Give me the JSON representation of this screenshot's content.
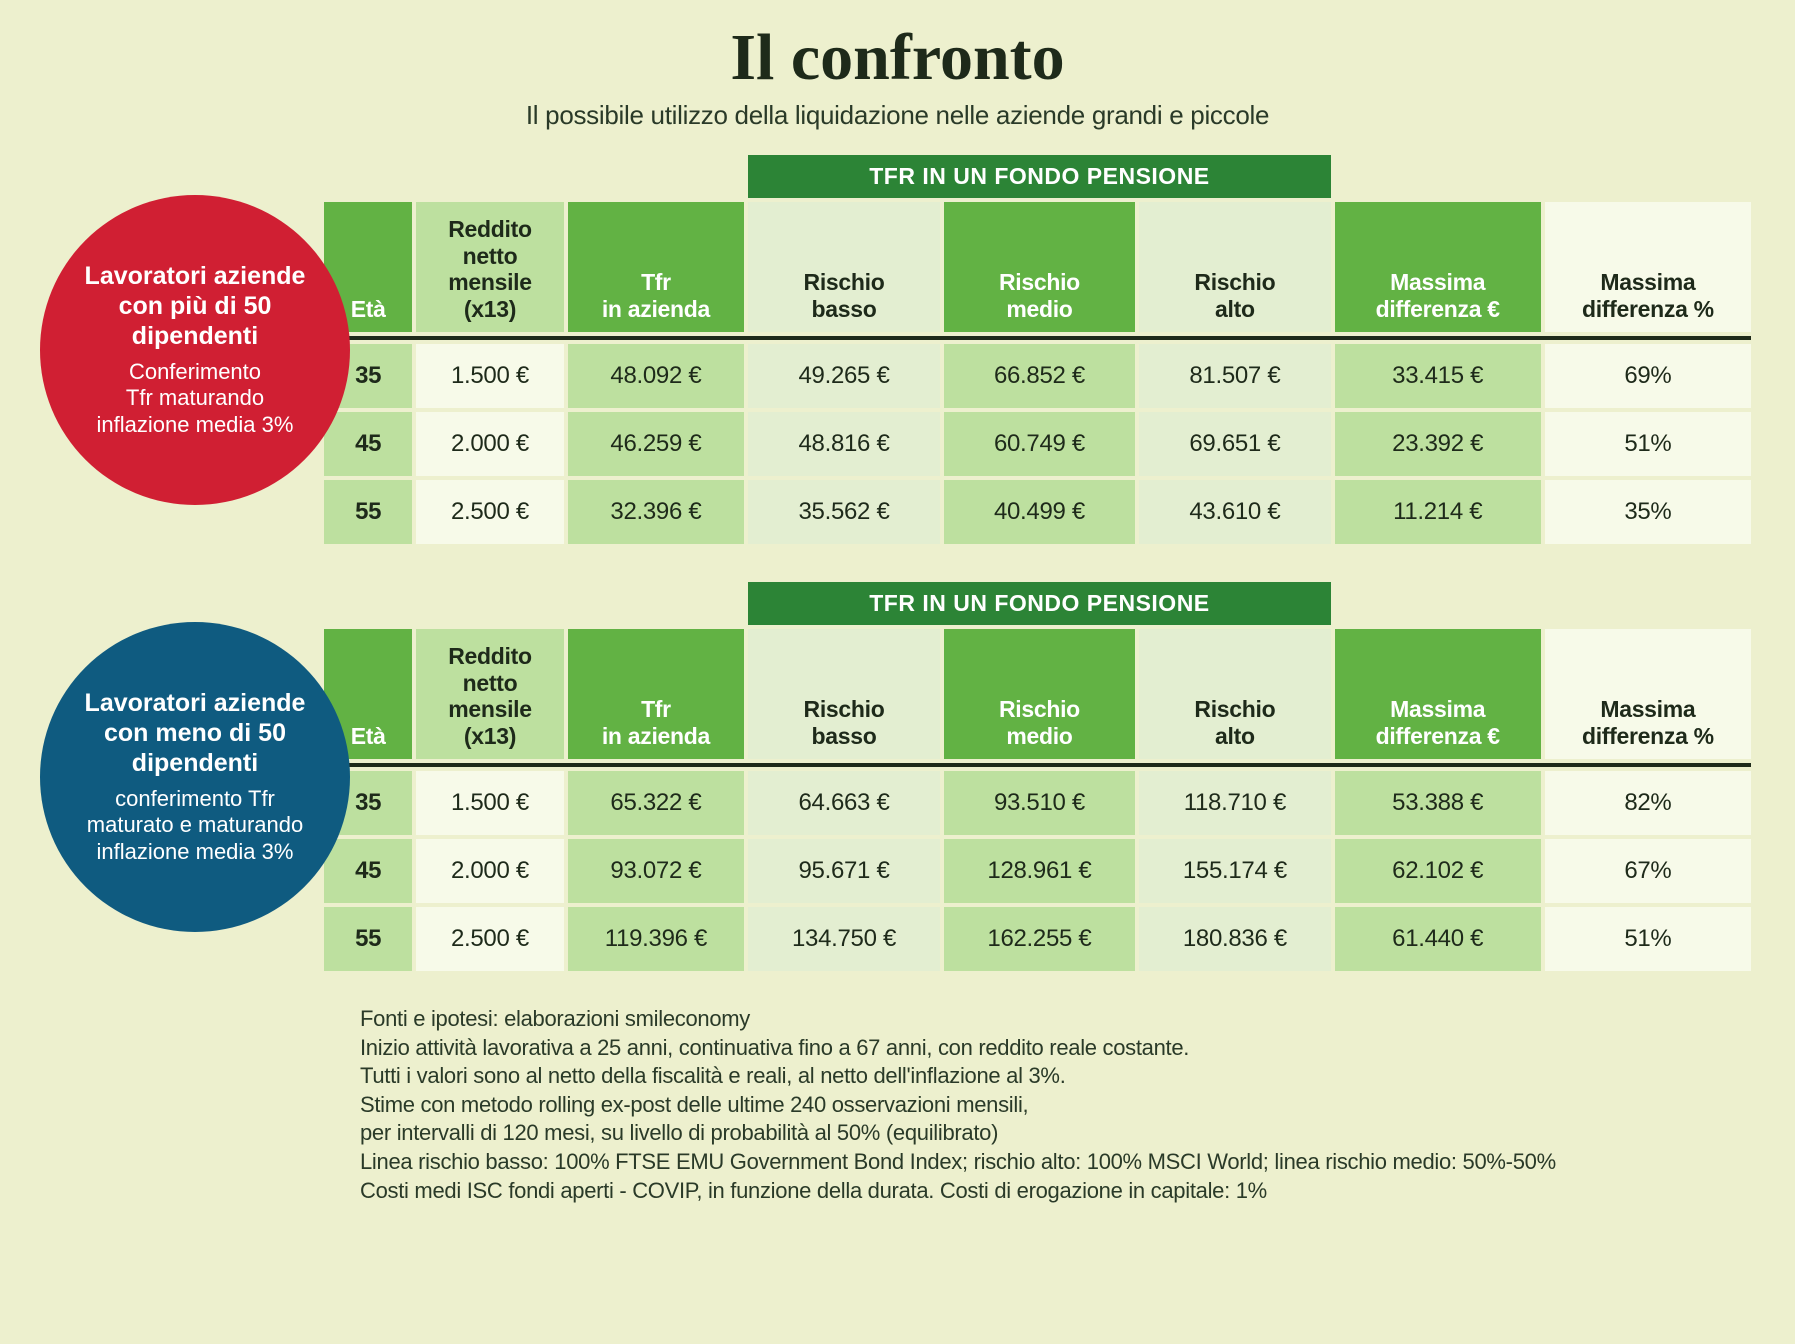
{
  "colors": {
    "page_bg": "#edf0ce",
    "title_color": "#1e2a1a",
    "banner_bg": "#2c8436",
    "header_green": "#62b244",
    "header_light": "#bde09f",
    "header_pale": "#e3eed1",
    "header_white": "#f7fae9",
    "badge_red": "#d01f33",
    "badge_blue": "#0f5b80",
    "sep_color": "#1e2a1a"
  },
  "typography": {
    "title_font": "Georgia serif",
    "title_size_pt": 50,
    "subtitle_size_pt": 19,
    "header_size_pt": 17,
    "cell_size_pt": 18,
    "badge_title_size_pt": 19,
    "footnote_size_pt": 16
  },
  "header": {
    "title": "Il confronto",
    "subtitle": "Il possibile utilizzo della liquidazione nelle aziende grandi e piccole"
  },
  "banner_label": "TFR IN UN FONDO PENSIONE",
  "columns": {
    "age": "Età",
    "income_l1": "Reddito",
    "income_l2": "netto",
    "income_l3": "mensile",
    "income_l4": "(x13)",
    "tfr_l1": "Tfr",
    "tfr_l2": "in azienda",
    "risk_low_l1": "Rischio",
    "risk_low_l2": "basso",
    "risk_med_l1": "Rischio",
    "risk_med_l2": "medio",
    "risk_high_l1": "Rischio",
    "risk_high_l2": "alto",
    "diff_eur_l1": "Massima",
    "diff_eur_l2": "differenza €",
    "diff_pct_l1": "Massima",
    "diff_pct_l2": "differenza %"
  },
  "section1": {
    "badge_title_l1": "Lavoratori aziende",
    "badge_title_l2": "con più di 50",
    "badge_title_l3": "dipendenti",
    "badge_sub_l1": "Conferimento",
    "badge_sub_l2": "Tfr maturando",
    "badge_sub_l3": "inflazione media 3%",
    "rows": [
      {
        "age": "35",
        "income": "1.500 €",
        "tfr": "48.092 €",
        "low": "49.265 €",
        "med": "66.852 €",
        "high": "81.507 €",
        "diff_e": "33.415 €",
        "diff_p": "69%"
      },
      {
        "age": "45",
        "income": "2.000 €",
        "tfr": "46.259 €",
        "low": "48.816 €",
        "med": "60.749 €",
        "high": "69.651 €",
        "diff_e": "23.392 €",
        "diff_p": "51%"
      },
      {
        "age": "55",
        "income": "2.500 €",
        "tfr": "32.396 €",
        "low": "35.562 €",
        "med": "40.499 €",
        "high": "43.610 €",
        "diff_e": "11.214 €",
        "diff_p": "35%"
      }
    ]
  },
  "section2": {
    "badge_title_l1": "Lavoratori aziende",
    "badge_title_l2": "con meno di 50",
    "badge_title_l3": "dipendenti",
    "badge_sub_l1": "conferimento Tfr",
    "badge_sub_l2": "maturato e maturando",
    "badge_sub_l3": "inflazione media 3%",
    "rows": [
      {
        "age": "35",
        "income": "1.500 €",
        "tfr": "65.322 €",
        "low": "64.663 €",
        "med": "93.510 €",
        "high": "118.710 €",
        "diff_e": "53.388 €",
        "diff_p": "82%"
      },
      {
        "age": "45",
        "income": "2.000 €",
        "tfr": "93.072 €",
        "low": "95.671 €",
        "med": "128.961 €",
        "high": "155.174 €",
        "diff_e": "62.102 €",
        "diff_p": "67%"
      },
      {
        "age": "55",
        "income": "2.500 €",
        "tfr": "119.396 €",
        "low": "134.750 €",
        "med": "162.255 €",
        "high": "180.836 €",
        "diff_e": "61.440 €",
        "diff_p": "51%"
      }
    ]
  },
  "footnotes": {
    "l1": "Fonti e ipotesi: elaborazioni smileconomy",
    "l2": "Inizio attività lavorativa a 25 anni, continuativa fino a 67 anni, con reddito reale costante.",
    "l3": "Tutti i valori sono al netto della fiscalità e reali, al netto dell'inflazione al 3%.",
    "l4": "Stime con metodo rolling ex-post delle ultime 240 osservazioni mensili,",
    "l5": "per intervalli di 120 mesi, su livello di probabilità al 50% (equilibrato)",
    "l6": "Linea rischio basso: 100% FTSE EMU Government Bond Index; rischio alto: 100% MSCI World; linea rischio medio: 50%-50%",
    "l7": "Costi medi ISC fondi aperti - COVIP, in funzione della durata. Costi di erogazione in capitale: 1%"
  }
}
